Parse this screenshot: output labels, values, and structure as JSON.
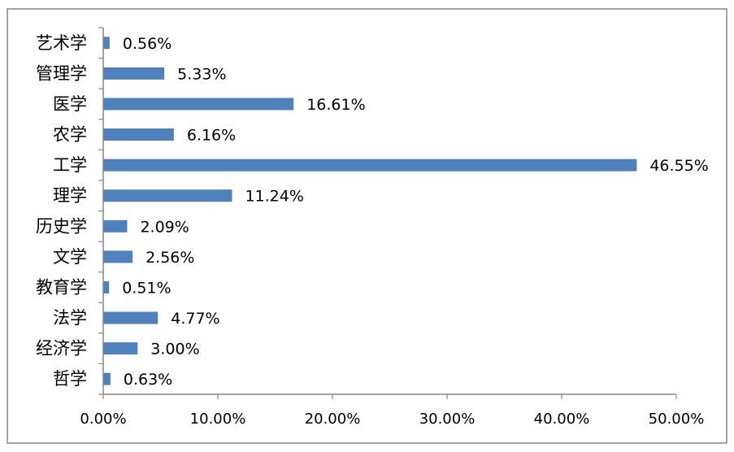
{
  "chart_data": {
    "type": "bar",
    "orientation": "horizontal",
    "categories": [
      "艺术学",
      "管理学",
      "医学",
      "农学",
      "工学",
      "理学",
      "历史学",
      "文学",
      "教育学",
      "法学",
      "经济学",
      "哲学"
    ],
    "values": [
      0.56,
      5.33,
      16.61,
      6.16,
      46.55,
      11.24,
      2.09,
      2.56,
      0.51,
      4.77,
      3.0,
      0.63
    ],
    "data_labels": [
      "0.56%",
      "5.33%",
      "16.61%",
      "6.16%",
      "46.55%",
      "11.24%",
      "2.09%",
      "2.56%",
      "0.51%",
      "4.77%",
      "3.00%",
      "0.63%"
    ],
    "x_ticks": [
      0,
      10,
      20,
      30,
      40,
      50
    ],
    "x_tick_labels": [
      "0.00%",
      "10.00%",
      "20.00%",
      "30.00%",
      "40.00%",
      "50.00%"
    ],
    "xlim": [
      0,
      50
    ],
    "grid": false,
    "legend": "none",
    "bar_color": "#4f81bd"
  }
}
